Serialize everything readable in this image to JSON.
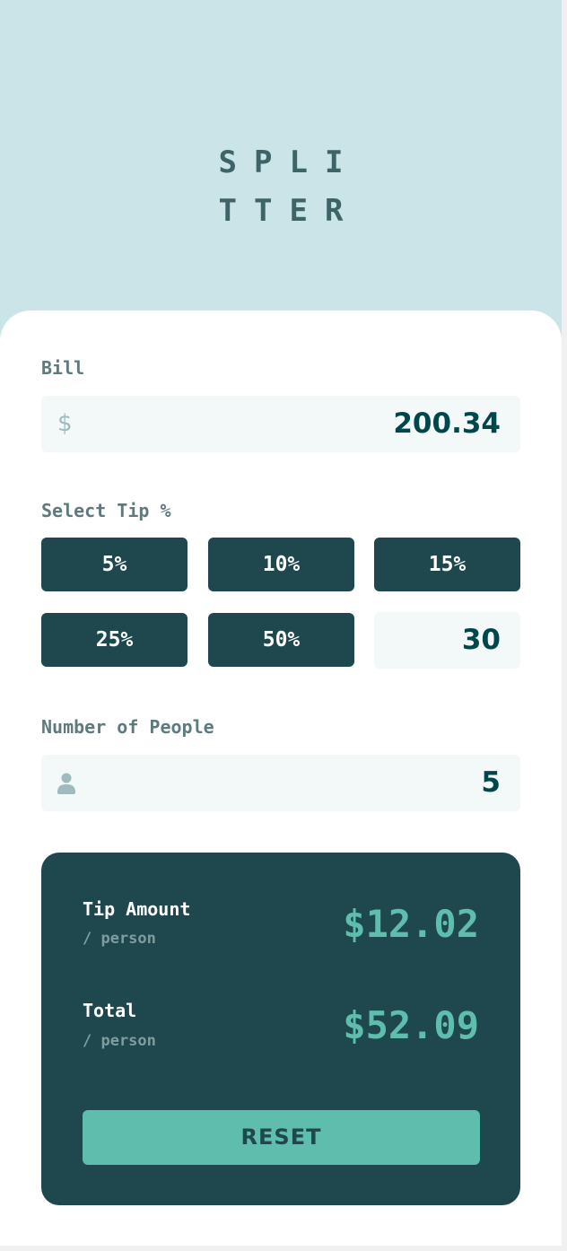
{
  "app": {
    "logo_line1": "SPLI",
    "logo_line2": "TTER"
  },
  "bill": {
    "label": "Bill",
    "currency_symbol": "$",
    "value": "200.34",
    "icon": "dollar-icon"
  },
  "tip": {
    "label": "Select Tip %",
    "options": [
      "5%",
      "10%",
      "15%",
      "25%",
      "50%"
    ],
    "custom_value": "30"
  },
  "people": {
    "label": "Number of People",
    "value": "5",
    "icon": "person-icon"
  },
  "results": {
    "tip_amount_label": "Tip Amount",
    "tip_amount_sub": "/ person",
    "tip_amount_value": "$12.02",
    "total_label": "Total",
    "total_sub": "/ person",
    "total_value": "$52.09",
    "reset_label": "RESET"
  },
  "colors": {
    "header_bg": "#cbe4e8",
    "dark_cyan": "#1e484e",
    "accent": "#5ebdac",
    "field_bg": "#f3f8f9"
  }
}
